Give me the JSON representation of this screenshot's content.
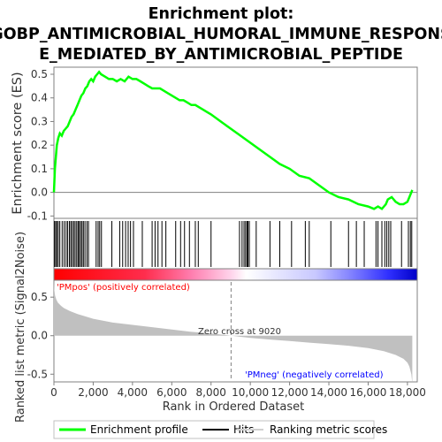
{
  "title": {
    "line1": "Enrichment plot:",
    "line2": "GOBP_ANTIMICROBIAL_HUMORAL_IMMUNE_RESPONS",
    "line3": "E_MEDIATED_BY_ANTIMICROBIAL_PEPTIDE"
  },
  "colors": {
    "enrichment": "#00ff00",
    "hits": "#000000",
    "metric_fill": "#c0c0c0",
    "pos_label": "#ff0000",
    "neg_label": "#0000ff",
    "zero_line": "#808080"
  },
  "labels": {
    "pos": "'PMpos' (positively correlated)",
    "neg": "'PMneg' (negatively correlated)",
    "zero_cross": "Zero cross at 9020"
  },
  "legend": {
    "enrichment": "Enrichment profile",
    "hits": "Hits",
    "ranking": "Ranking metric scores"
  },
  "chart_data": [
    {
      "type": "line",
      "name": "enrichment-profile",
      "ylabel": "Enrichment score (ES)",
      "xlim": [
        0,
        18500
      ],
      "ylim": [
        -0.11,
        0.53
      ],
      "y_ticks": [
        "-0.1",
        "0.0",
        "0.1",
        "0.2",
        "0.3",
        "0.4",
        "0.5"
      ],
      "x": [
        0,
        50,
        100,
        150,
        220,
        300,
        400,
        500,
        600,
        700,
        800,
        900,
        1000,
        1100,
        1200,
        1300,
        1400,
        1500,
        1600,
        1700,
        1800,
        1900,
        2000,
        2100,
        2200,
        2300,
        2400,
        2600,
        2800,
        3000,
        3200,
        3400,
        3600,
        3800,
        4000,
        4200,
        4400,
        4600,
        4800,
        5000,
        5200,
        5400,
        5600,
        5800,
        6000,
        6200,
        6400,
        6600,
        6800,
        7000,
        7200,
        7400,
        7600,
        7800,
        8000,
        8500,
        9000,
        9500,
        10000,
        10500,
        11000,
        11500,
        12000,
        12500,
        13000,
        13500,
        14000,
        14500,
        15000,
        15500,
        16000,
        16300,
        16500,
        16700,
        16900,
        17000,
        17200,
        17400,
        17600,
        17800,
        18000,
        18100,
        18200,
        18250
      ],
      "values": [
        0.0,
        0.1,
        0.15,
        0.2,
        0.23,
        0.25,
        0.24,
        0.26,
        0.27,
        0.28,
        0.3,
        0.32,
        0.33,
        0.35,
        0.37,
        0.39,
        0.41,
        0.42,
        0.44,
        0.45,
        0.47,
        0.48,
        0.47,
        0.49,
        0.5,
        0.51,
        0.5,
        0.49,
        0.48,
        0.48,
        0.47,
        0.48,
        0.47,
        0.49,
        0.48,
        0.48,
        0.47,
        0.46,
        0.45,
        0.44,
        0.44,
        0.44,
        0.43,
        0.42,
        0.41,
        0.4,
        0.39,
        0.39,
        0.38,
        0.37,
        0.37,
        0.36,
        0.35,
        0.34,
        0.33,
        0.3,
        0.27,
        0.24,
        0.21,
        0.18,
        0.15,
        0.12,
        0.1,
        0.07,
        0.06,
        0.03,
        0.0,
        -0.02,
        -0.03,
        -0.05,
        -0.06,
        -0.07,
        -0.06,
        -0.07,
        -0.05,
        -0.03,
        -0.02,
        -0.04,
        -0.05,
        -0.05,
        -0.04,
        -0.02,
        0.0,
        0.01
      ]
    },
    {
      "type": "scatter",
      "name": "hits",
      "x": [
        30,
        90,
        150,
        220,
        300,
        420,
        520,
        620,
        700,
        790,
        860,
        930,
        1010,
        1080,
        1160,
        1230,
        1290,
        1360,
        1430,
        1500,
        1580,
        1680,
        1760,
        2150,
        2250,
        2330,
        2420,
        2950,
        3350,
        3500,
        3650,
        3780,
        3900,
        4050,
        4500,
        5000,
        5150,
        5300,
        5500,
        5700,
        6200,
        6450,
        6650,
        6900,
        7200,
        7350,
        8000,
        9450,
        9580,
        9680,
        9760,
        9830,
        9880,
        9950,
        10300,
        11000,
        11500,
        12100,
        12800,
        13000,
        14100,
        15000,
        15400,
        15800,
        16400,
        16500,
        16700,
        16850,
        16950,
        17050,
        17150,
        17700,
        18050,
        18150,
        18220
      ]
    },
    {
      "type": "area",
      "name": "ranking-metric-scores",
      "xlabel": "Rank in Ordered Dataset",
      "ylabel": "Ranked list metric (Signal2Noise)",
      "xlim": [
        0,
        18500
      ],
      "ylim": [
        -0.6,
        0.72
      ],
      "x_ticks": [
        "0",
        "2,000",
        "4,000",
        "6,000",
        "8,000",
        "10,000",
        "12,000",
        "14,000",
        "16,000",
        "18,000"
      ],
      "y_ticks": [
        "-0.5",
        "0.0",
        "0.5"
      ],
      "x": [
        0,
        20,
        60,
        120,
        200,
        350,
        500,
        800,
        1200,
        1600,
        2000,
        3000,
        4000,
        5000,
        6000,
        7000,
        8000,
        9020,
        10000,
        11000,
        12000,
        13000,
        14000,
        15000,
        16000,
        16800,
        17400,
        17800,
        18000,
        18100,
        18200,
        18250
      ],
      "values": [
        0.72,
        0.6,
        0.52,
        0.47,
        0.43,
        0.39,
        0.36,
        0.32,
        0.28,
        0.25,
        0.22,
        0.17,
        0.14,
        0.11,
        0.08,
        0.05,
        0.03,
        0.0,
        -0.03,
        -0.05,
        -0.07,
        -0.09,
        -0.11,
        -0.13,
        -0.16,
        -0.2,
        -0.25,
        -0.3,
        -0.35,
        -0.4,
        -0.5,
        -0.62
      ]
    }
  ]
}
